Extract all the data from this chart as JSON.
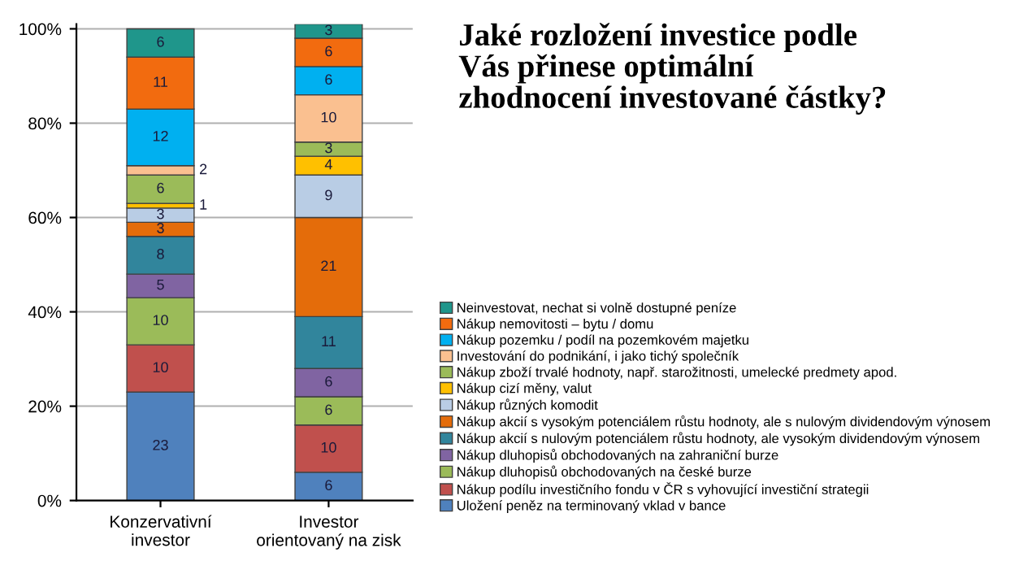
{
  "chart_data": {
    "type": "bar",
    "stacked": true,
    "title": "Jaké rozložení investice podle\nVás přinese optimální\nzhodnocení investované částky?",
    "categories": [
      "Konzervativní\ninvestor",
      "Investor\norientovaný na zisk"
    ],
    "series": [
      {
        "name": "Uložení peněz na terminovaný vklad v bance",
        "color": "#4f81bd",
        "values": [
          23,
          6
        ]
      },
      {
        "name": "Nákup podílu investičního fondu v ČR s vyhovující investiční strategii",
        "color": "#c0504d",
        "values": [
          10,
          10
        ]
      },
      {
        "name": "Nákup dluhopisů obchodovaných na české burze",
        "color": "#9bbb59",
        "values": [
          10,
          6
        ]
      },
      {
        "name": "Nákup dluhopisů obchodovaných na zahraniční burze",
        "color": "#8064a2",
        "values": [
          5,
          6
        ]
      },
      {
        "name": "Nákup akcií s nulovým potenciálem růstu hodnoty, ale vysokým dividendovým výnosem",
        "color": "#31859c",
        "values": [
          8,
          11
        ]
      },
      {
        "name": "Nákup akcií s vysokým potenciálem růstu hodnoty, ale s nulovým dividendovým výnosem",
        "color": "#e46c0a",
        "values": [
          3,
          21
        ]
      },
      {
        "name": "Nákup různých komodit",
        "color": "#b9cde5",
        "values": [
          3,
          9
        ]
      },
      {
        "name": "Nákup cizí měny, valut",
        "color": "#ffc000",
        "values": [
          1,
          4
        ]
      },
      {
        "name": "Nákup zboží trvalé hodnoty, např. starožitnosti, umelecké predmety apod.",
        "color": "#9bbb59",
        "values": [
          6,
          3
        ]
      },
      {
        "name": "Investování do podnikání, i jako tichý společník",
        "color": "#fac090",
        "values": [
          2,
          10
        ]
      },
      {
        "name": "Nákup pozemku / podíl na pozemkovém majetku",
        "color": "#00b0f0",
        "values": [
          12,
          6
        ]
      },
      {
        "name": "Nákup nemovitosti – bytu / domu",
        "color": "#f26b0f",
        "values": [
          11,
          6
        ]
      },
      {
        "name": "Neinvestovat, nechat si volně dostupné peníze",
        "color": "#1f968b",
        "values": [
          6,
          3
        ]
      }
    ],
    "ylim": [
      0,
      101
    ],
    "yticks": [
      {
        "value": 0,
        "label": "0%"
      },
      {
        "value": 20,
        "label": "20%"
      },
      {
        "value": 40,
        "label": "40%"
      },
      {
        "value": 60,
        "label": "60%"
      },
      {
        "value": 80,
        "label": "80%"
      },
      {
        "value": 100,
        "label": "100%"
      }
    ],
    "grid": "y",
    "legend": "right",
    "data_labels": true
  }
}
